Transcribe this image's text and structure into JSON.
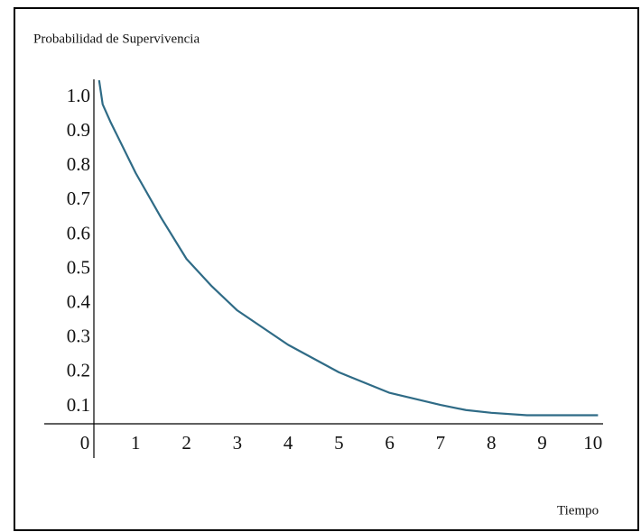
{
  "chart_data": {
    "type": "line",
    "title": "Probabilidad de Supervivencia",
    "x_label": "Tiempo",
    "x": [
      0.28,
      0.35,
      0.5,
      1,
      1.5,
      2,
      2.5,
      3,
      4,
      5,
      6,
      7,
      7.5,
      8,
      8.7,
      10.1
    ],
    "series": [
      {
        "color": "#2f6b86",
        "values": [
          1.05,
          0.98,
          0.93,
          0.78,
          0.65,
          0.53,
          0.45,
          0.38,
          0.28,
          0.2,
          0.14,
          0.105,
          0.09,
          0.082,
          0.075,
          0.075
        ]
      }
    ],
    "xlim": [
      -0.8,
      10.2
    ],
    "ylim": [
      0.05,
      1.05
    ],
    "xticks": [
      0,
      1,
      2,
      3,
      4,
      5,
      6,
      7,
      8,
      9,
      10
    ],
    "yticks": [
      0.1,
      0.2,
      0.3,
      0.4,
      0.5,
      0.6,
      0.7,
      0.8,
      0.9,
      {
        "value": 1,
        "label": "1.0"
      }
    ]
  }
}
